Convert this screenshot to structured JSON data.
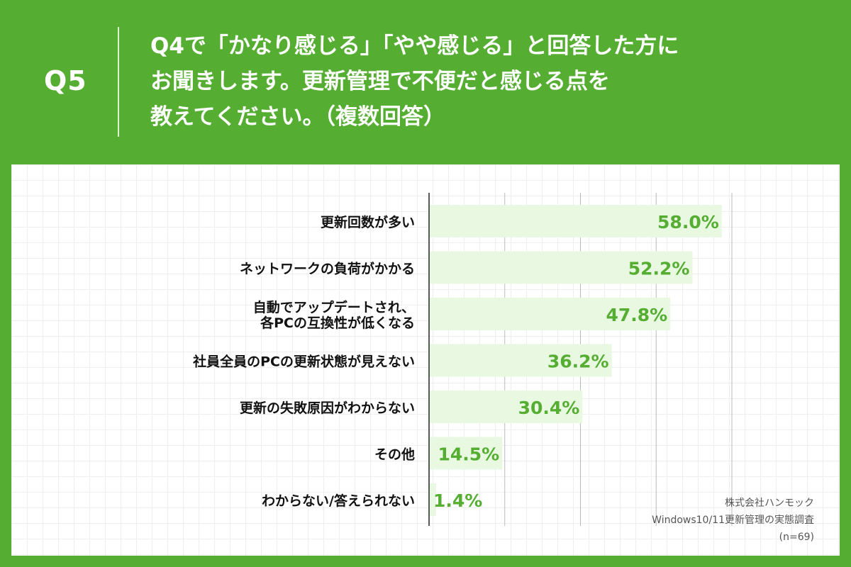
{
  "header": {
    "question_label": "Q5",
    "question_lines": [
      "Q4で「かなり感じる」「やや感じる」と回答した方に",
      "お聞きします。更新管理で不便だと感じる点を",
      "教えてください。（複数回答）"
    ]
  },
  "chart_data": {
    "type": "bar",
    "orientation": "horizontal",
    "categories": [
      [
        "更新回数が多い"
      ],
      [
        "ネットワークの負荷がかかる"
      ],
      [
        "自動でアップデートされ、",
        "各PCの互換性が低くなる"
      ],
      [
        "社員全員のPCの更新状態が見えない"
      ],
      [
        "更新の失敗原因がわからない"
      ],
      [
        "その他"
      ],
      [
        "わからない/答えられない"
      ]
    ],
    "values": [
      58.0,
      52.2,
      47.8,
      36.2,
      30.4,
      14.5,
      1.4
    ],
    "value_labels": [
      "58.0%",
      "52.2%",
      "47.8%",
      "36.2%",
      "30.4%",
      "14.5%",
      "1.4%"
    ],
    "xlim": [
      0,
      60
    ],
    "grid": true,
    "gridline_values": [
      15,
      30,
      45,
      60
    ],
    "colors": {
      "bar": "#e8f8e1",
      "value_text": "#55ae32",
      "gridline": "#bbbbbb",
      "axis": "#222222",
      "category_text": "#111111"
    }
  },
  "credit": {
    "company": "株式会社ハンモック",
    "survey": "Windows10/11更新管理の実態調査",
    "sample": "(n=69)"
  },
  "theme": {
    "background": "#55ae32",
    "panel": "#ffffff"
  }
}
